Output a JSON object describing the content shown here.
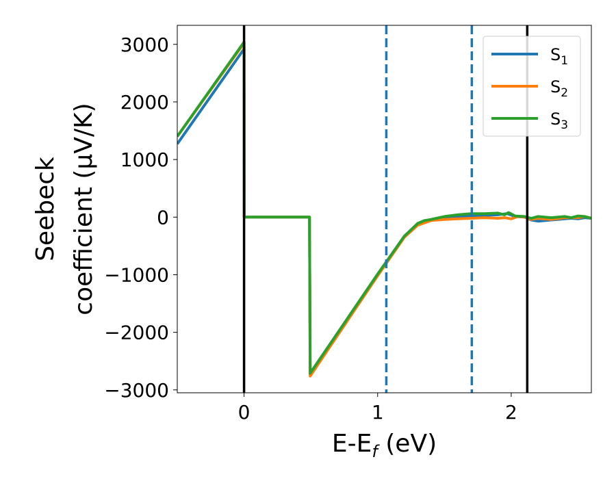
{
  "chart_data": {
    "type": "line",
    "xlabel_parts": [
      "E-E",
      "f",
      " (eV)"
    ],
    "ylabel_lines": [
      "Seebeck",
      "coefficient  (μV/K)"
    ],
    "xlim": [
      -0.5,
      2.6
    ],
    "ylim": [
      -3050,
      3330
    ],
    "xticks": [
      {
        "v": 0,
        "label": "0"
      },
      {
        "v": 1,
        "label": "1"
      },
      {
        "v": 2,
        "label": "2"
      }
    ],
    "yticks": [
      {
        "v": 3000,
        "label": "3000"
      },
      {
        "v": 2000,
        "label": "2000"
      },
      {
        "v": 1000,
        "label": "1000"
      },
      {
        "v": 0,
        "label": "0"
      },
      {
        "v": -1000,
        "label": "−1000"
      },
      {
        "v": -2000,
        "label": "−2000"
      },
      {
        "v": -3000,
        "label": "−3000"
      }
    ],
    "vlines": [
      {
        "x": 0,
        "style": "solid",
        "color": "#000000"
      },
      {
        "x": 1.065,
        "style": "dashed",
        "color": "#1f77b4"
      },
      {
        "x": 1.705,
        "style": "dashed",
        "color": "#1f77b4"
      },
      {
        "x": 2.12,
        "style": "solid",
        "color": "#000000"
      }
    ],
    "legend_position": "upper right",
    "series": [
      {
        "name": "S",
        "sub": "1",
        "color": "#1f77b4",
        "points": [
          [
            -0.5,
            1270
          ],
          [
            0,
            2920
          ],
          [
            0.001,
            0
          ],
          [
            0.49,
            0
          ],
          [
            0.495,
            -2730
          ],
          [
            1.0,
            -1000
          ],
          [
            1.2,
            -330
          ],
          [
            1.3,
            -130
          ],
          [
            1.35,
            -80
          ],
          [
            1.45,
            -30
          ],
          [
            1.6,
            10
          ],
          [
            1.7,
            20
          ],
          [
            1.8,
            30
          ],
          [
            1.9,
            40
          ],
          [
            1.97,
            60
          ],
          [
            2.03,
            10
          ],
          [
            2.1,
            0
          ],
          [
            2.15,
            -50
          ],
          [
            2.2,
            -70
          ],
          [
            2.3,
            -50
          ],
          [
            2.4,
            -30
          ],
          [
            2.45,
            -20
          ],
          [
            2.5,
            -30
          ],
          [
            2.55,
            -10
          ],
          [
            2.6,
            -20
          ]
        ]
      },
      {
        "name": "S",
        "sub": "2",
        "color": "#ff7f0e",
        "points": [
          [
            -0.5,
            1400
          ],
          [
            0,
            3020
          ],
          [
            0.001,
            0
          ],
          [
            0.49,
            0
          ],
          [
            0.495,
            -2760
          ],
          [
            1.0,
            -1020
          ],
          [
            1.2,
            -350
          ],
          [
            1.3,
            -140
          ],
          [
            1.4,
            -60
          ],
          [
            1.5,
            -40
          ],
          [
            1.6,
            -30
          ],
          [
            1.7,
            -20
          ],
          [
            1.8,
            -10
          ],
          [
            1.9,
            -20
          ],
          [
            1.95,
            -10
          ],
          [
            2.0,
            -30
          ],
          [
            2.05,
            10
          ],
          [
            2.1,
            0
          ],
          [
            2.15,
            -40
          ],
          [
            2.2,
            -20
          ],
          [
            2.3,
            -40
          ],
          [
            2.4,
            -10
          ],
          [
            2.5,
            -10
          ],
          [
            2.55,
            10
          ],
          [
            2.6,
            -20
          ]
        ]
      },
      {
        "name": "S",
        "sub": "3",
        "color": "#2ca02c",
        "points": [
          [
            -0.5,
            1400
          ],
          [
            0,
            3040
          ],
          [
            0.001,
            0
          ],
          [
            0.49,
            0
          ],
          [
            0.495,
            -2710
          ],
          [
            1.0,
            -990
          ],
          [
            1.2,
            -330
          ],
          [
            1.3,
            -110
          ],
          [
            1.35,
            -60
          ],
          [
            1.4,
            -40
          ],
          [
            1.5,
            10
          ],
          [
            1.6,
            40
          ],
          [
            1.7,
            60
          ],
          [
            1.8,
            60
          ],
          [
            1.9,
            70
          ],
          [
            1.95,
            40
          ],
          [
            1.98,
            80
          ],
          [
            2.03,
            20
          ],
          [
            2.1,
            10
          ],
          [
            2.15,
            -20
          ],
          [
            2.2,
            10
          ],
          [
            2.3,
            -10
          ],
          [
            2.4,
            10
          ],
          [
            2.45,
            -10
          ],
          [
            2.5,
            20
          ],
          [
            2.55,
            10
          ],
          [
            2.6,
            -20
          ]
        ]
      }
    ]
  }
}
